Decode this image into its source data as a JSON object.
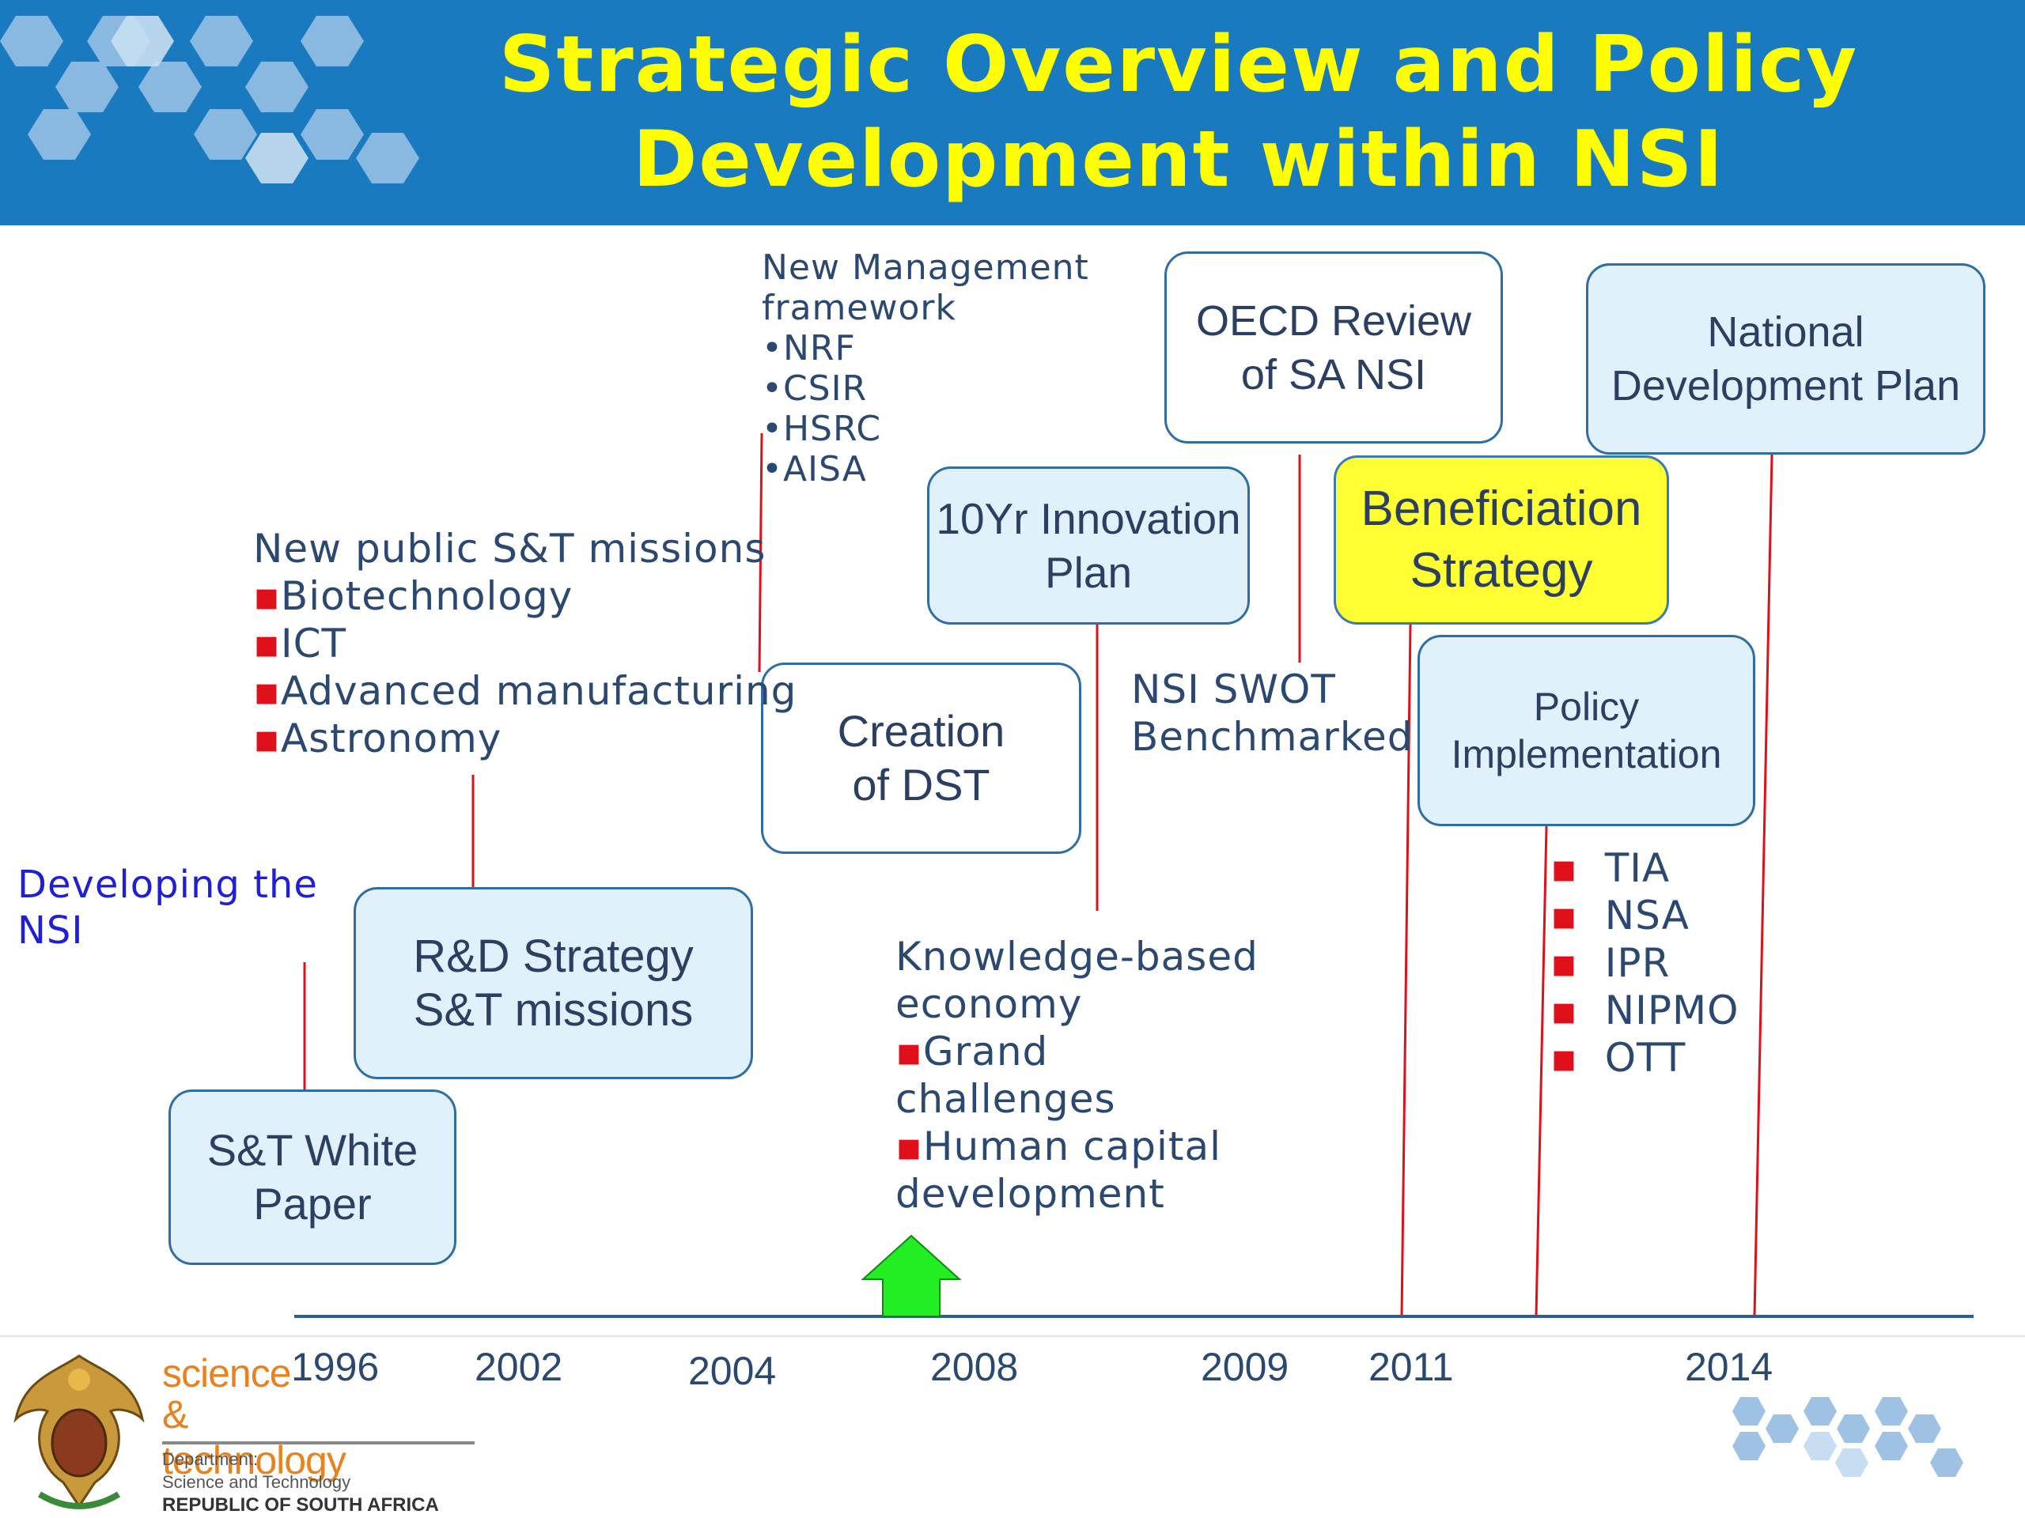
{
  "title": {
    "line1": "Strategic Overview and Policy",
    "line2": "Development within NSI"
  },
  "boxes": {
    "st_white_paper": "S&T White\nPaper",
    "rd_strategy": "R&D Strategy\nS&T missions",
    "creation_dst": "Creation\nof DST",
    "innovation_plan": "10Yr Innovation\nPlan",
    "oecd_review": "OECD Review\nof SA NSI",
    "beneficiation": "Beneficiation\nStrategy",
    "policy_implementation": "Policy\nImplementation",
    "national_dev_plan": "National\nDevelopment Plan"
  },
  "annotations": {
    "developing_nsi": {
      "line1": "Developing the",
      "line2": "NSI"
    },
    "missions": {
      "heading": "New public S&T missions",
      "bullet": "▪",
      "items": [
        "Biotechnology",
        "ICT",
        "Advanced manufacturing",
        "Astronomy"
      ]
    },
    "management": {
      "heading1": "New Management",
      "heading2": "framework",
      "bullet": "•",
      "items": [
        "NRF",
        "CSIR",
        "HSRC",
        "AISA"
      ]
    },
    "knowledge": {
      "heading1": "Knowledge-based",
      "heading2": "economy",
      "bullet": "▪",
      "item1_line1": "Grand",
      "item1_line2": "challenges",
      "item2_line1": "Human capital",
      "item2_line2": "development"
    },
    "swot": {
      "line1": "NSI SWOT",
      "line2": "Benchmarked"
    },
    "agencies": {
      "bullet": "▪",
      "items": [
        "TIA",
        "NSA",
        "IPR",
        "NIPMO",
        "OTT"
      ]
    }
  },
  "timeline": {
    "years": [
      "1996",
      "2002",
      "2004",
      "2008",
      "2009",
      "2011",
      "2014"
    ]
  },
  "logo": {
    "word1": "science",
    "word2": "& technology",
    "dept1": "Department:",
    "dept2": "Science and Technology",
    "country": "REPUBLIC OF SOUTH AFRICA"
  },
  "colors": {
    "header_bg": "#1a7abf",
    "title": "#ffff00",
    "connector": "#e0101a",
    "box_fill": "#e0f1fc",
    "highlight_box": "#ffff33",
    "arrow": "#22ee22",
    "axis": "#2f5f8f"
  }
}
